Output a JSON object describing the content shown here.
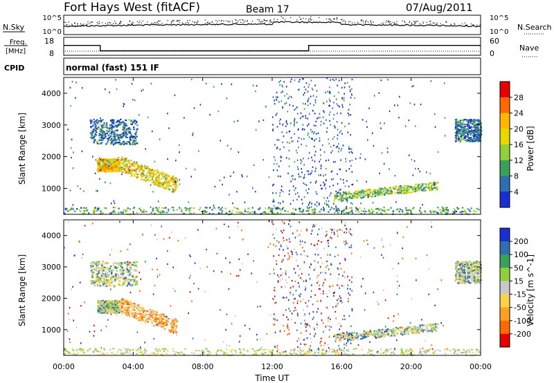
{
  "header": {
    "station": "Fort Hays West (fitACF)",
    "beam": "Beam 17",
    "date": "07/Aug/2011"
  },
  "noise_panel": {
    "left_label": "N.Sky",
    "right_label": "N.Search",
    "left_ticks": [
      "10^5",
      "10^0"
    ],
    "right_ticks": [
      "10^5",
      "10^0"
    ]
  },
  "freq_panel": {
    "left_label_1": "Freq.",
    "left_label_2": "[MHz]",
    "right_label": "Nave",
    "left_ticks": [
      "18",
      "8"
    ],
    "right_ticks": [
      "60",
      "0"
    ],
    "freq_segments": [
      {
        "start_hour": 0,
        "end_hour": 2.1,
        "freq_mhz": 13.5
      },
      {
        "start_hour": 2.1,
        "end_hour": 14.1,
        "freq_mhz": 10.5
      },
      {
        "start_hour": 14.1,
        "end_hour": 24,
        "freq_mhz": 13.5
      }
    ]
  },
  "cpid": {
    "label": "CPID",
    "mode": "normal (fast) 151 IF"
  },
  "chart_data": [
    {
      "type": "heatmap",
      "quantity": "Power",
      "ylabel": "Slant Range [km]",
      "colorbar_label": "Power [dB]",
      "colorbar_ticks": [
        "28",
        "24",
        "20",
        "16",
        "12",
        "8",
        "4"
      ],
      "colorbar_colors": [
        "#e60000",
        "#ff6a00",
        "#ffb800",
        "#e8d800",
        "#8fd13a",
        "#3aa05a",
        "#2f6fb0",
        "#1a2fd0"
      ],
      "x_range_hours": [
        0,
        24
      ],
      "y_range_km": [
        180,
        4500
      ],
      "yticks": [
        "1000",
        "2000",
        "3000",
        "4000"
      ],
      "scatter_regions": [
        {
          "name": "morning-patch",
          "hour_start": 1.9,
          "hour_end": 3.2,
          "km_start": 1550,
          "km_end": 1950,
          "level": 0.65
        },
        {
          "name": "tongue",
          "hour_start": 3.2,
          "hour_end": 6.5,
          "km_start": 900,
          "km_end": 1900,
          "level": 0.6
        },
        {
          "name": "upper-arc",
          "hour_start": 1.5,
          "hour_end": 4.2,
          "km_start": 2400,
          "km_end": 3200,
          "level": 0.15
        },
        {
          "name": "late-arc",
          "hour_start": 15.5,
          "hour_end": 21.5,
          "km_start": 750,
          "km_end": 1300,
          "level": 0.4
        },
        {
          "name": "dawn-arc",
          "hour_start": 22.5,
          "hour_end": 24,
          "km_start": 2500,
          "km_end": 3200,
          "level": 0.15
        },
        {
          "name": "ground-scatter",
          "hour_start": 0,
          "hour_end": 24,
          "km_start": 200,
          "km_end": 420,
          "level": 0.3
        }
      ]
    },
    {
      "type": "heatmap",
      "quantity": "Velocity",
      "ylabel": "Slant Range [km]",
      "colorbar_label": "Velocity [m s^-1]",
      "colorbar_ticks": [
        "200",
        "100",
        "50",
        "15",
        "-15",
        "-50",
        "-100",
        "-200"
      ],
      "colorbar_colors": [
        "#1a2fd0",
        "#2f6fb0",
        "#3aa05a",
        "#8fd13a",
        "#c8c8c8",
        "#ffd24a",
        "#ffa020",
        "#ff6a00",
        "#e60000"
      ],
      "x_range_hours": [
        0,
        24
      ],
      "y_range_km": [
        180,
        4500
      ],
      "yticks": [
        "1000",
        "2000",
        "3000",
        "4000"
      ],
      "xticks": [
        "00:00",
        "04:00",
        "08:00",
        "12:00",
        "16:00",
        "20:00",
        "00:00"
      ],
      "xlabel": "Time UT"
    }
  ]
}
